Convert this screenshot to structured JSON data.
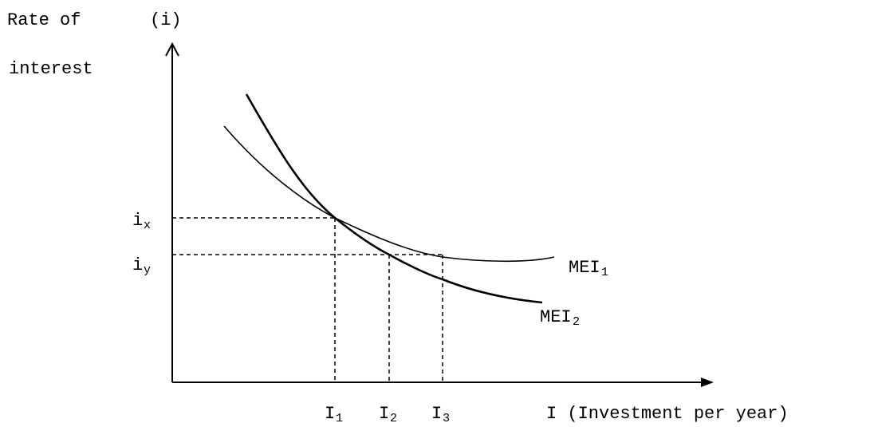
{
  "y_axis": {
    "title_line1": "Rate of",
    "symbol": "(i)",
    "title_line2": "interest"
  },
  "x_axis": {
    "title": "I (Investment per year)"
  },
  "y_ticks": [
    {
      "base": "i",
      "sub": "x"
    },
    {
      "base": "i",
      "sub": "y"
    }
  ],
  "x_ticks": [
    {
      "base": "I",
      "sub": "1"
    },
    {
      "base": "I",
      "sub": "2"
    },
    {
      "base": "I",
      "sub": "3"
    }
  ],
  "curves": [
    {
      "base": "MEI",
      "sub": "1"
    },
    {
      "base": "MEI",
      "sub": "2"
    }
  ]
}
